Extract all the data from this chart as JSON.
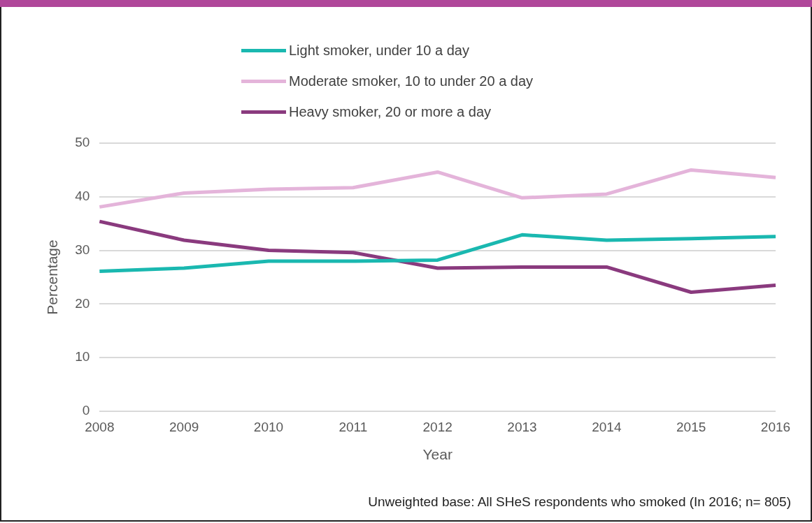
{
  "chart_data": {
    "type": "line",
    "xlabel": "Year",
    "ylabel": "Percentage",
    "categories": [
      "2008",
      "2009",
      "2010",
      "2011",
      "2012",
      "2013",
      "2014",
      "2015",
      "2016"
    ],
    "series": [
      {
        "name": "Light smoker, under 10 a day",
        "color": "#1ab8b0",
        "values": [
          26.1,
          26.7,
          28.0,
          28.0,
          28.2,
          32.9,
          31.9,
          32.2,
          32.6
        ]
      },
      {
        "name": "Moderate smoker, 10 to under 20 a day",
        "color": "#e4b4da",
        "values": [
          38.1,
          40.7,
          41.4,
          41.7,
          44.6,
          39.8,
          40.5,
          45.0,
          43.6
        ]
      },
      {
        "name": "Heavy smoker, 20 or more a day",
        "color": "#8a3a7e",
        "values": [
          35.4,
          31.9,
          30.0,
          29.6,
          26.7,
          26.9,
          26.9,
          22.2,
          23.5
        ]
      }
    ],
    "ylim": [
      0,
      50
    ],
    "yticks": [
      0,
      10,
      20,
      30,
      40,
      50
    ],
    "grid": "y",
    "legend": "top",
    "marker": "none",
    "line_style": "solid",
    "annotations": [
      "Unweighted base: All SHeS respondents who smoked (In 2016; n= 805)"
    ]
  }
}
